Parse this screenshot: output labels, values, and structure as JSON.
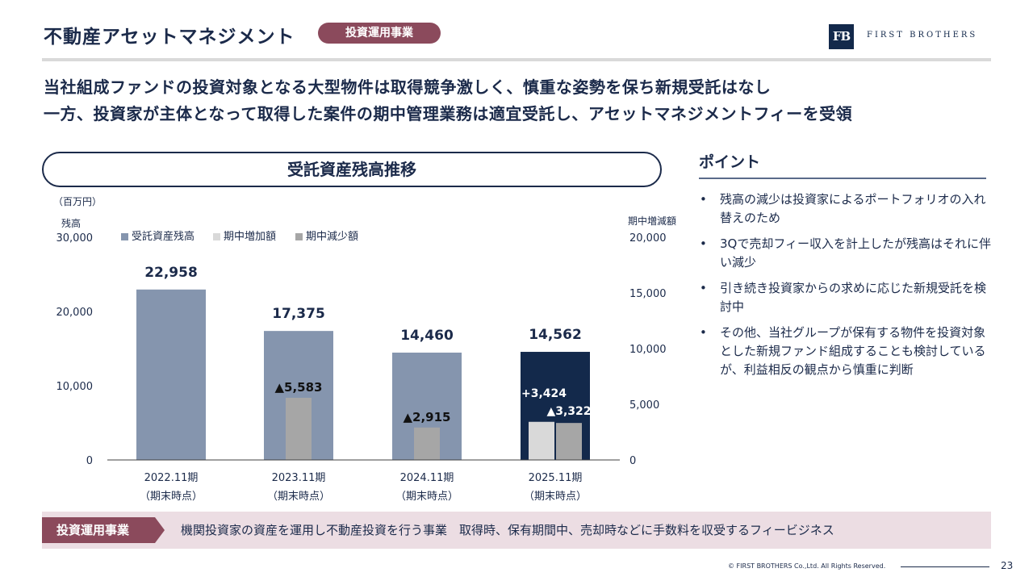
{
  "header": {
    "title": "不動産アセットマネジメント",
    "tag": "投資運用事業",
    "logo_mark": "FB",
    "logo_text": "FIRST BROTHERS"
  },
  "headline": {
    "line1": "当社組成ファンドの投資対象となる大型物件は取得競争激しく、慎重な姿勢を保ち新規受託はなし",
    "line2": "一方、投資家が主体となって取得した案件の期中管理業務は適宜受託し、アセットマネジメントフィーを受領"
  },
  "chart_section": {
    "title": "受託資産残高推移"
  },
  "chart_data": {
    "type": "bar",
    "title": "受託資産残高推移",
    "unit": "（百万円）",
    "left_axis_label": "残高",
    "right_axis_label": "期中増減額",
    "left_ylim": [
      0,
      30000
    ],
    "right_ylim": [
      0,
      20000
    ],
    "left_ticks": [
      "30,000",
      "20,000",
      "10,000",
      "0"
    ],
    "left_tick_values": [
      30000,
      20000,
      10000,
      0
    ],
    "right_ticks": [
      "20,000",
      "15,000",
      "10,000",
      "5,000",
      "0"
    ],
    "right_tick_values": [
      20000,
      15000,
      10000,
      5000,
      0
    ],
    "legend": [
      "受託資産残高",
      "期中増加額",
      "期中減少額"
    ],
    "legend_colors": [
      "#8595ae",
      "#d9d9d9",
      "#a6a6a6"
    ],
    "categories": [
      "2022.11期",
      "2023.11期",
      "2024.11期",
      "2025.11期"
    ],
    "category_sub": "（期末時点）",
    "balance": [
      22958,
      17375,
      14460,
      14562
    ],
    "balance_labels": [
      "22,958",
      "17,375",
      "14,460",
      "14,562"
    ],
    "increase": [
      null,
      null,
      null,
      3424
    ],
    "increase_labels": [
      "",
      "",
      "",
      "+3,424"
    ],
    "decrease": [
      null,
      5583,
      2915,
      3322
    ],
    "decrease_labels": [
      "",
      "▲5,583",
      "▲2,915",
      "▲3,322"
    ],
    "highlight_color": "#13294b",
    "base_color": "#8595ae"
  },
  "points": {
    "heading": "ポイント",
    "items": [
      "残高の減少は投資家によるポートフォリオの入れ替えのため",
      "3Qで売却フィー収入を計上したが残高はそれに伴い減少",
      "引き続き投資家からの求めに応じた新規受託を検討中",
      "その他、当社グループが保有する物件を投資対象とした新規ファンド組成することも検討しているが、利益相反の観点から慎重に判断"
    ]
  },
  "footer": {
    "tag": "投資運用事業",
    "description": "機関投資家の資産を運用し不動産投資を行う事業　取得時、保有期間中、売却時などに手数料を収受するフィービジネス",
    "copyright": "© FIRST BROTHERS Co.,Ltd. All Rights Reserved.",
    "page": "23"
  }
}
